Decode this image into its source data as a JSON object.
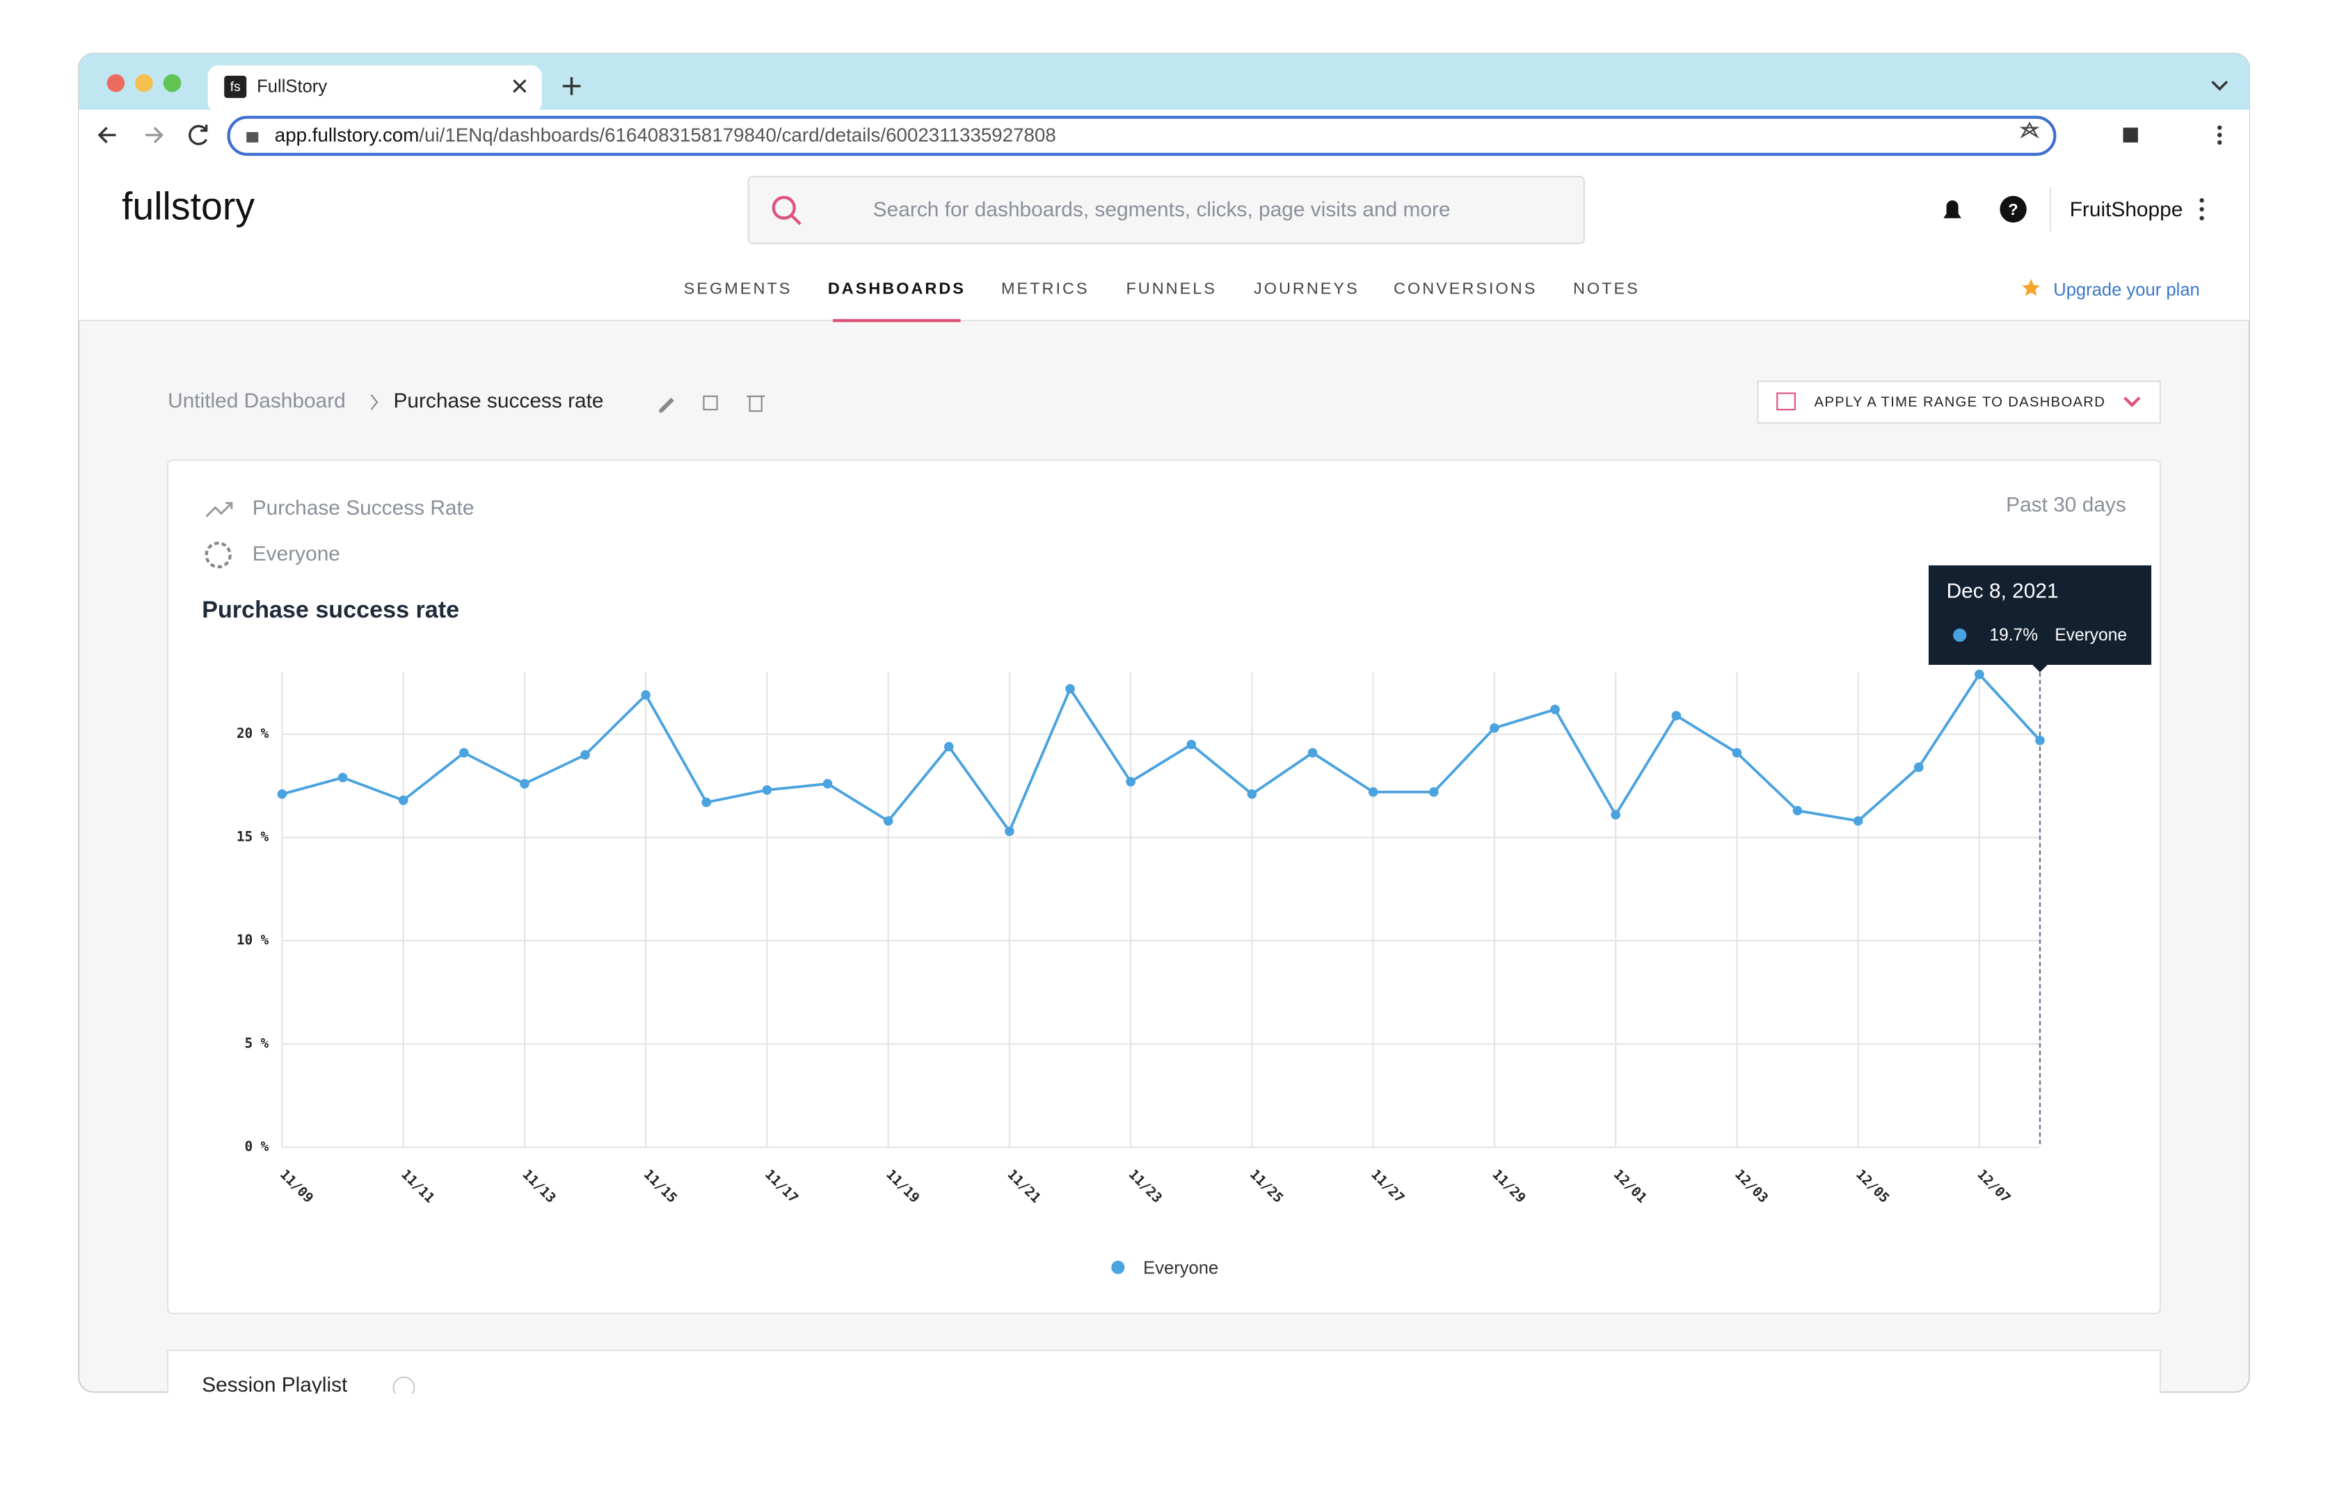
{
  "browser": {
    "tab_icon": "fs",
    "tab_title": "FullStory",
    "url_host": "app.fullstory.com",
    "url_path": "/ui/1ENq/dashboards/6164083158179840/card/details/6002311335927808"
  },
  "header": {
    "logo": "fullstory",
    "search_placeholder": "Search for dashboards, segments, clicks, page visits and more",
    "help": "?",
    "account": "FruitShoppe",
    "upgrade": "Upgrade your plan",
    "nav": [
      "SEGMENTS",
      "DASHBOARDS",
      "METRICS",
      "FUNNELS",
      "JOURNEYS",
      "CONVERSIONS",
      "NOTES"
    ]
  },
  "breadcrumb": {
    "parent": "Untitled Dashboard",
    "current": "Purchase success rate"
  },
  "time_range_button": "APPLY A TIME RANGE TO DASHBOARD",
  "card": {
    "metric": "Purchase Success Rate",
    "segment": "Everyone",
    "range": "Past 30 days"
  },
  "next_card": {
    "title": "Session Playlist"
  },
  "chart_data": {
    "type": "line",
    "title": "Purchase success rate",
    "categories": [
      "11/09",
      null,
      "11/11",
      null,
      "11/13",
      null,
      "11/15",
      null,
      "11/17",
      null,
      "11/19",
      null,
      "11/21",
      null,
      "11/23",
      null,
      "11/25",
      null,
      "11/27",
      null,
      "11/29",
      null,
      "12/01",
      null,
      "12/03",
      null,
      "12/05",
      null,
      "12/07",
      null
    ],
    "series": [
      {
        "name": "Everyone",
        "color": "#4aa3df",
        "values": [
          17.1,
          17.9,
          16.8,
          19.1,
          17.6,
          19.0,
          21.9,
          16.7,
          17.3,
          17.6,
          15.8,
          19.4,
          15.3,
          22.2,
          17.7,
          19.5,
          17.1,
          19.1,
          17.2,
          17.2,
          20.3,
          21.2,
          16.1,
          20.9,
          19.1,
          16.3,
          15.8,
          18.4,
          22.9,
          19.7
        ],
        "value_labels": [
          null,
          null,
          null,
          null,
          null,
          null,
          null,
          null,
          null,
          null,
          null,
          null,
          null,
          null,
          null,
          null,
          null,
          null,
          null,
          null,
          null,
          null,
          null,
          null,
          null,
          null,
          null,
          null,
          null,
          "19.7%"
        ]
      }
    ],
    "ylim": [
      0,
      23
    ],
    "yticks": [
      {
        "value": 0,
        "label": "0 %"
      },
      {
        "value": 5,
        "label": "5 %"
      },
      {
        "value": 10,
        "label": "10 %"
      },
      {
        "value": 15,
        "label": "15 %"
      },
      {
        "value": 20,
        "label": "20 %"
      }
    ],
    "grid": true,
    "legend": "bottom",
    "tooltip_title": "Dec 8, 2021"
  }
}
